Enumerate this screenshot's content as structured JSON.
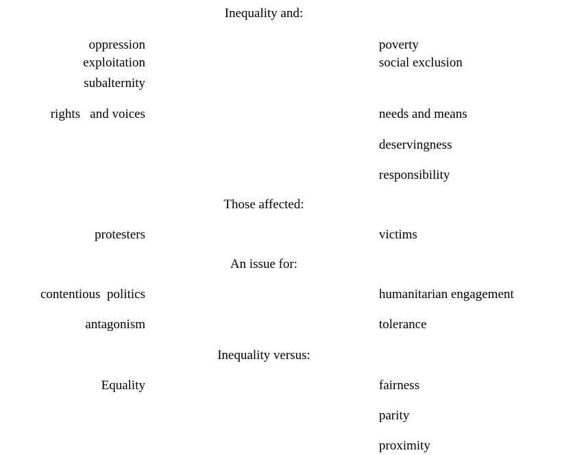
{
  "sections": [
    {
      "heading": "Inequality and:",
      "rows": [
        {
          "left": [
            "oppression",
            "exploitation",
            "subalternity"
          ],
          "right": [
            "poverty",
            "social exclusion"
          ]
        },
        {
          "left": [
            "rights   and voices"
          ],
          "right": [
            "needs and means"
          ]
        },
        {
          "left": [],
          "right": [
            "deservingness"
          ]
        },
        {
          "left": [],
          "right": [
            "responsibility"
          ]
        }
      ]
    },
    {
      "heading": "Those affected:",
      "rows": [
        {
          "left": [
            "protesters"
          ],
          "right": [
            "victims"
          ]
        }
      ]
    },
    {
      "heading": "An issue for:",
      "rows": [
        {
          "left": [
            "contentious  politics"
          ],
          "right": [
            "humanitarian engagement"
          ]
        },
        {
          "left": [
            "antagonism"
          ],
          "right": [
            "tolerance"
          ]
        }
      ]
    },
    {
      "heading": "Inequality versus:",
      "rows": [
        {
          "left": [
            "Equality"
          ],
          "right": [
            "fairness"
          ]
        },
        {
          "left": [],
          "right": [
            "parity"
          ]
        },
        {
          "left": [],
          "right": [
            "proximity"
          ]
        }
      ]
    }
  ]
}
